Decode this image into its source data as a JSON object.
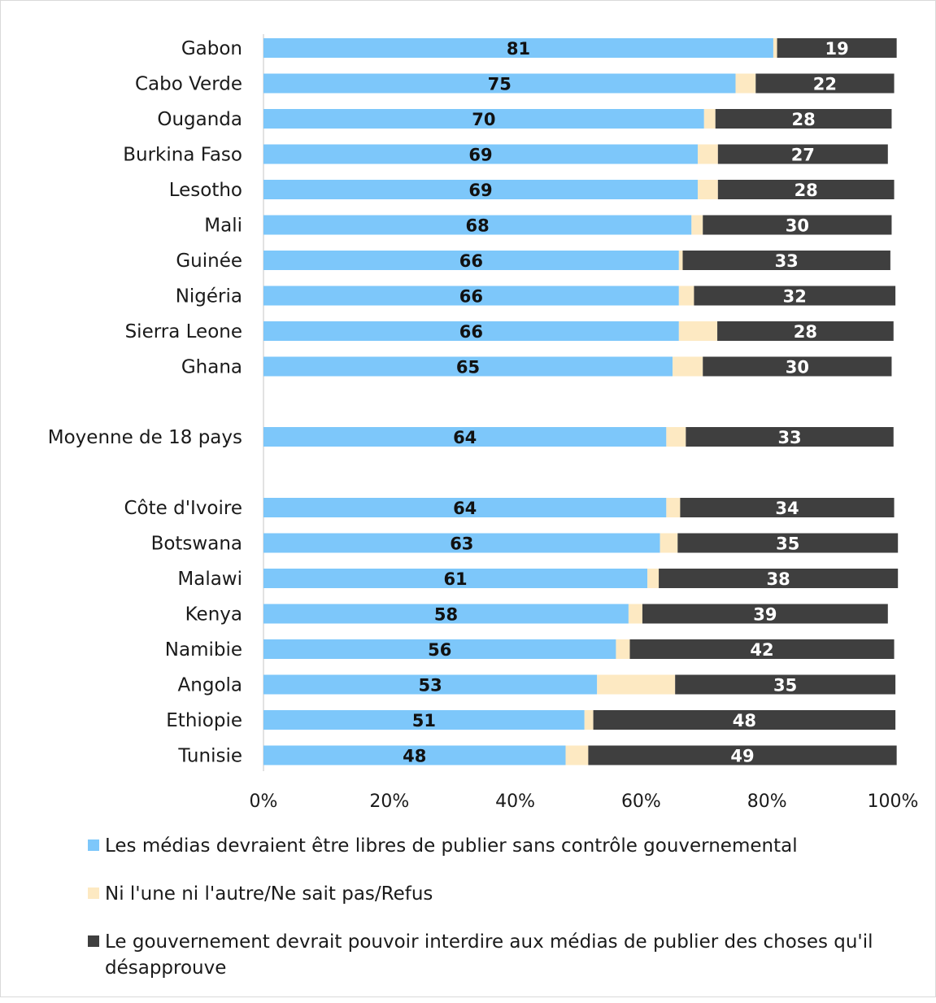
{
  "chart_data": {
    "type": "bar",
    "orientation": "horizontal",
    "stacked": true,
    "categories": [
      "Gabon",
      "Cabo Verde",
      "Ouganda",
      "Burkina Faso",
      "Lesotho",
      "Mali",
      "Guinée",
      "Nigéria",
      "Sierra Leone",
      "Ghana",
      "Moyenne de 18 pays",
      "Côte d'Ivoire",
      "Botswana",
      "Malawi",
      "Kenya",
      "Namibie",
      "Angola",
      "Ethiopie",
      "Tunisie"
    ],
    "series": [
      {
        "name": "Les médias devraient être libres de publier sans contrôle gouvernemental",
        "color": "#7dc7fa",
        "values": [
          81,
          75,
          70,
          69,
          69,
          68,
          66,
          66,
          66,
          65,
          64,
          64,
          63,
          61,
          58,
          56,
          53,
          51,
          48
        ],
        "labels_shown": true
      },
      {
        "name": "Ni l'une ni l'autre/Ne sait pas/Refus",
        "color": "#fde9c2",
        "values": [
          0.6,
          3.2,
          1.8,
          3.2,
          3.2,
          1.8,
          0.6,
          2.4,
          6.1,
          4.8,
          3.1,
          2.2,
          2.8,
          1.8,
          2.2,
          2.2,
          12.4,
          1.4,
          3.6
        ],
        "labels_shown": false
      },
      {
        "name": "Le gouvernement devrait pouvoir interdire aux médias de publier des choses qu'il désapprouve",
        "color": "#3f3f3f",
        "values": [
          19,
          22,
          28,
          27,
          28,
          30,
          33,
          32,
          28,
          30,
          33,
          34,
          35,
          38,
          39,
          42,
          35,
          48,
          49
        ],
        "labels_shown": true
      }
    ],
    "xlim": [
      0,
      100
    ],
    "xticks": [
      "0%",
      "20%",
      "40%",
      "60%",
      "80%",
      "100%"
    ],
    "grid": false,
    "legend_position": "bottom"
  }
}
